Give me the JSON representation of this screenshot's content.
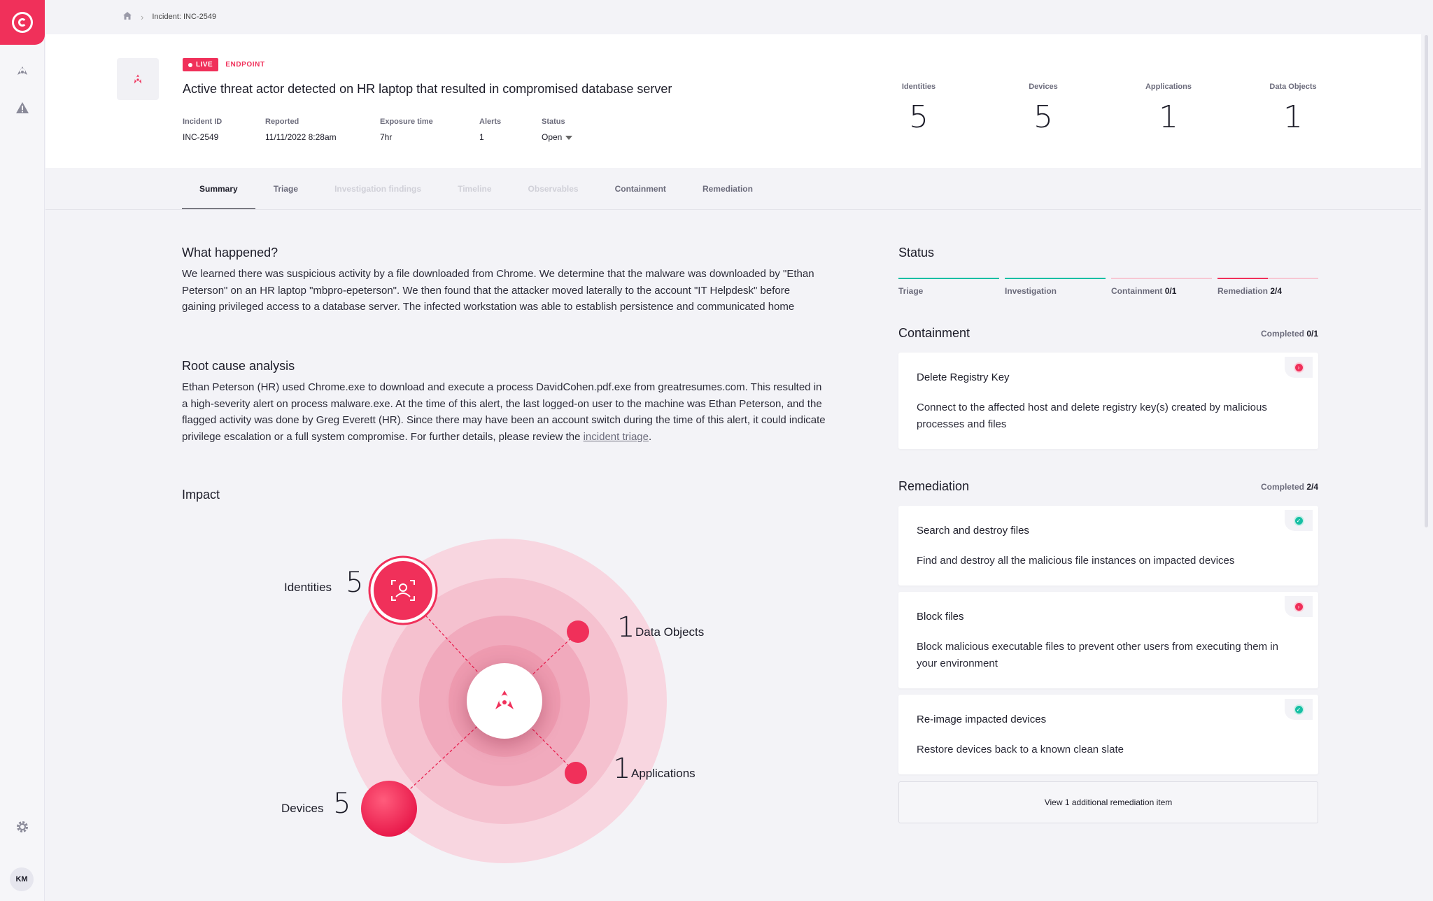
{
  "breadcrumb": {
    "current": "Incident: INC-2549"
  },
  "sidebar": {
    "avatar_initials": "KM"
  },
  "incident": {
    "live_label": "LIVE",
    "type_label": "ENDPOINT",
    "title": "Active threat actor detected on HR laptop that resulted in compromised database server",
    "meta": [
      {
        "label": "Incident ID",
        "value": "INC-2549"
      },
      {
        "label": "Reported",
        "value": "11/11/2022 8:28am"
      },
      {
        "label": "Exposure time",
        "value": "7hr"
      },
      {
        "label": "Alerts",
        "value": "1"
      },
      {
        "label": "Status",
        "value": "Open"
      }
    ],
    "stats": [
      {
        "label": "Identities",
        "value": "5"
      },
      {
        "label": "Devices",
        "value": "5"
      },
      {
        "label": "Applications",
        "value": "1"
      },
      {
        "label": "Data Objects",
        "value": "1"
      }
    ]
  },
  "tabs": [
    "Summary",
    "Triage",
    "Investigation findings",
    "Timeline",
    "Observables",
    "Containment",
    "Remediation"
  ],
  "summary": {
    "what_happened_title": "What happened?",
    "what_happened_text": "We learned there was suspicious activity by a file downloaded from Chrome. We determine that the malware was downloaded by \"Ethan Peterson\" on an HR laptop \"mbpro-epeterson\". We then found that the attacker moved laterally to the account \"IT Helpdesk\" before gaining privileged access to a database server. The infected workstation was able to establish persistence and communicated home",
    "root_cause_title": "Root cause analysis",
    "root_cause_text": "Ethan Peterson (HR) used Chrome.exe to download and execute a process DavidCohen.pdf.exe from greatresumes.com. This resulted in a high-severity alert on process malware.exe. At the time of this alert, the last logged-on user to the machine was Ethan Peterson, and the flagged activity was done by Greg Everett (HR). Since there may have been an account switch during the time of this alert, it could indicate privilege escalation or a full system compromise. For further details, please review the",
    "root_cause_link": "incident triage",
    "root_cause_end": ".",
    "impact_title": "Impact",
    "impact": {
      "identities": {
        "label": "Identities",
        "value": "5"
      },
      "data_objects": {
        "label": "Data Objects",
        "value": "1"
      },
      "applications": {
        "label": "Applications",
        "value": "1"
      },
      "devices": {
        "label": "Devices",
        "value": "5"
      }
    }
  },
  "status": {
    "title": "Status",
    "steps": [
      {
        "label": "Triage",
        "count": "",
        "progress": 1.0
      },
      {
        "label": "Investigation",
        "count": "",
        "progress": 1.0
      },
      {
        "label": "Containment",
        "count": "0/1",
        "progress": 0.0
      },
      {
        "label": "Remediation",
        "count": "2/4",
        "progress": 0.5
      }
    ]
  },
  "containment": {
    "title": "Containment",
    "completed_label": "Completed",
    "completed_value": "0/1",
    "items": [
      {
        "title": "Delete Registry Key",
        "desc": "Connect to the affected host and delete registry key(s) created by malicious processes and files",
        "done": false
      }
    ]
  },
  "remediation": {
    "title": "Remediation",
    "completed_label": "Completed",
    "completed_value": "2/4",
    "items": [
      {
        "title": "Search and destroy files",
        "desc": "Find and destroy all the malicious file instances on impacted devices",
        "done": true
      },
      {
        "title": "Block files",
        "desc": "Block malicious executable files to prevent other users from executing them in your environment",
        "done": false
      },
      {
        "title": "Re-image impacted devices",
        "desc": "Restore devices back to a known clean slate",
        "done": true
      }
    ],
    "more_label": "View 1 additional remediation item"
  },
  "colors": {
    "accent": "#f0305a",
    "success": "#17bfa4"
  }
}
